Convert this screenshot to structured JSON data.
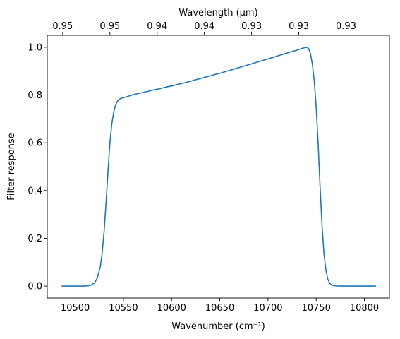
{
  "chart_data": {
    "type": "line",
    "xlabel": "Wavenumber (cm⁻¹)",
    "x2label": "Wavelength (μm)",
    "ylabel": "Filter response",
    "xlim": [
      10471,
      10826
    ],
    "ylim": [
      -0.05,
      1.05
    ],
    "x_ticks": [
      10500,
      10550,
      10600,
      10650,
      10700,
      10750,
      10800
    ],
    "x_tick_labels": [
      "10500",
      "10550",
      "10600",
      "10650",
      "10700",
      "10750",
      "10800"
    ],
    "x2_ticks": [
      10487,
      10536,
      10585,
      10634,
      10683,
      10732,
      10781
    ],
    "x2_tick_labels": [
      "0.95",
      "0.95",
      "0.94",
      "0.94",
      "0.93",
      "0.93",
      "0.93"
    ],
    "y_ticks": [
      0.0,
      0.2,
      0.4,
      0.6,
      0.8,
      1.0
    ],
    "y_tick_labels": [
      "0.0",
      "0.2",
      "0.4",
      "0.6",
      "0.8",
      "1.0"
    ],
    "grid": false,
    "series": [
      {
        "color": "#1f77b4",
        "x": [
          10486,
          10500,
          10510,
          10516,
          10520,
          10523,
          10526,
          10528,
          10530,
          10532,
          10534,
          10536,
          10538,
          10540,
          10542,
          10544,
          10546,
          10548,
          10550,
          10552,
          10555,
          10560,
          10565,
          10570,
          10575,
          10580,
          10585,
          10590,
          10595,
          10600,
          10605,
          10610,
          10615,
          10620,
          10625,
          10630,
          10635,
          10640,
          10645,
          10650,
          10655,
          10660,
          10665,
          10670,
          10675,
          10680,
          10685,
          10690,
          10695,
          10700,
          10705,
          10710,
          10715,
          10720,
          10725,
          10730,
          10735,
          10738,
          10740,
          10742,
          10744,
          10746,
          10748,
          10750,
          10752,
          10754,
          10756,
          10758,
          10760,
          10762,
          10764,
          10766,
          10768,
          10770,
          10774,
          10780,
          10790,
          10800,
          10812
        ],
        "y": [
          0.0,
          0.0,
          0.0,
          0.003,
          0.013,
          0.035,
          0.08,
          0.14,
          0.23,
          0.35,
          0.48,
          0.6,
          0.68,
          0.73,
          0.76,
          0.775,
          0.783,
          0.787,
          0.789,
          0.791,
          0.795,
          0.801,
          0.806,
          0.81,
          0.815,
          0.82,
          0.824,
          0.829,
          0.834,
          0.838,
          0.843,
          0.848,
          0.853,
          0.858,
          0.864,
          0.869,
          0.875,
          0.88,
          0.886,
          0.891,
          0.897,
          0.903,
          0.909,
          0.915,
          0.921,
          0.927,
          0.933,
          0.939,
          0.945,
          0.951,
          0.957,
          0.964,
          0.97,
          0.976,
          0.982,
          0.988,
          0.995,
          0.998,
          1.0,
          0.995,
          0.975,
          0.93,
          0.86,
          0.75,
          0.6,
          0.42,
          0.26,
          0.14,
          0.07,
          0.03,
          0.012,
          0.005,
          0.002,
          0.001,
          0.0,
          0.0,
          0.0,
          0.0,
          0.0
        ]
      }
    ]
  }
}
